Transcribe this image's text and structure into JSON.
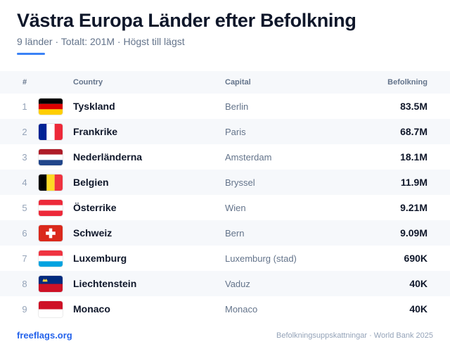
{
  "header": {
    "title": "Västra Europa Länder efter Befolkning",
    "subtitle": "9 länder · Totalt: 201M · Högst till lägst",
    "accent_color": "#3b82f6"
  },
  "table": {
    "columns": {
      "rank": "#",
      "country": "Country",
      "capital": "Capital",
      "population": "Befolkning"
    },
    "rows": [
      {
        "rank": "1",
        "flag": "germany-flag",
        "country": "Tyskland",
        "capital": "Berlin",
        "population": "83.5M"
      },
      {
        "rank": "2",
        "flag": "france-flag",
        "country": "Frankrike",
        "capital": "Paris",
        "population": "68.7M"
      },
      {
        "rank": "3",
        "flag": "netherlands-flag",
        "country": "Nederländerna",
        "capital": "Amsterdam",
        "population": "18.1M"
      },
      {
        "rank": "4",
        "flag": "belgium-flag",
        "country": "Belgien",
        "capital": "Bryssel",
        "population": "11.9M"
      },
      {
        "rank": "5",
        "flag": "austria-flag",
        "country": "Österrike",
        "capital": "Wien",
        "population": "9.21M"
      },
      {
        "rank": "6",
        "flag": "switzerland-flag",
        "country": "Schweiz",
        "capital": "Bern",
        "population": "9.09M"
      },
      {
        "rank": "7",
        "flag": "luxembourg-flag",
        "country": "Luxemburg",
        "capital": "Luxemburg (stad)",
        "population": "690K"
      },
      {
        "rank": "8",
        "flag": "liechtenstein-flag",
        "country": "Liechtenstein",
        "capital": "Vaduz",
        "population": "40K"
      },
      {
        "rank": "9",
        "flag": "monaco-flag",
        "country": "Monaco",
        "capital": "Monaco",
        "population": "40K"
      }
    ]
  },
  "footer": {
    "site": "freeflags.org",
    "source": "Befolkningsuppskattningar · World Bank 2025",
    "link_color": "#2563eb"
  }
}
